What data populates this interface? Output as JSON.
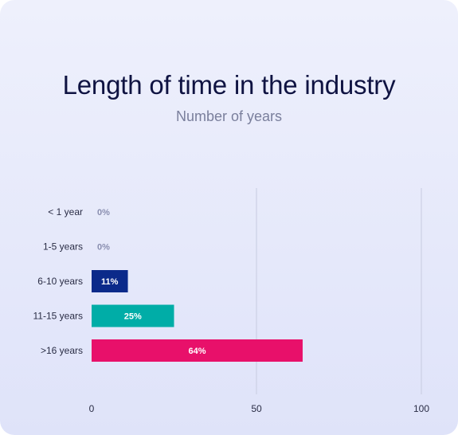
{
  "chart_data": {
    "type": "bar",
    "orientation": "horizontal",
    "title": "Length of time in the industry",
    "subtitle": "Number of years",
    "categories": [
      "< 1 year",
      "1-5 years",
      "6-10 years",
      "11-15 years",
      ">16 years"
    ],
    "values": [
      0,
      0,
      11,
      25,
      64
    ],
    "value_labels": [
      "0%",
      "0%",
      "11%",
      "25%",
      "64%"
    ],
    "colors": [
      "#8a8fb0",
      "#8a8fb0",
      "#0b2a8a",
      "#00ada7",
      "#e8106a"
    ],
    "xlim": [
      0,
      100
    ],
    "xticks": [
      0,
      50,
      100
    ],
    "grid": "vertical",
    "legend": "none"
  }
}
